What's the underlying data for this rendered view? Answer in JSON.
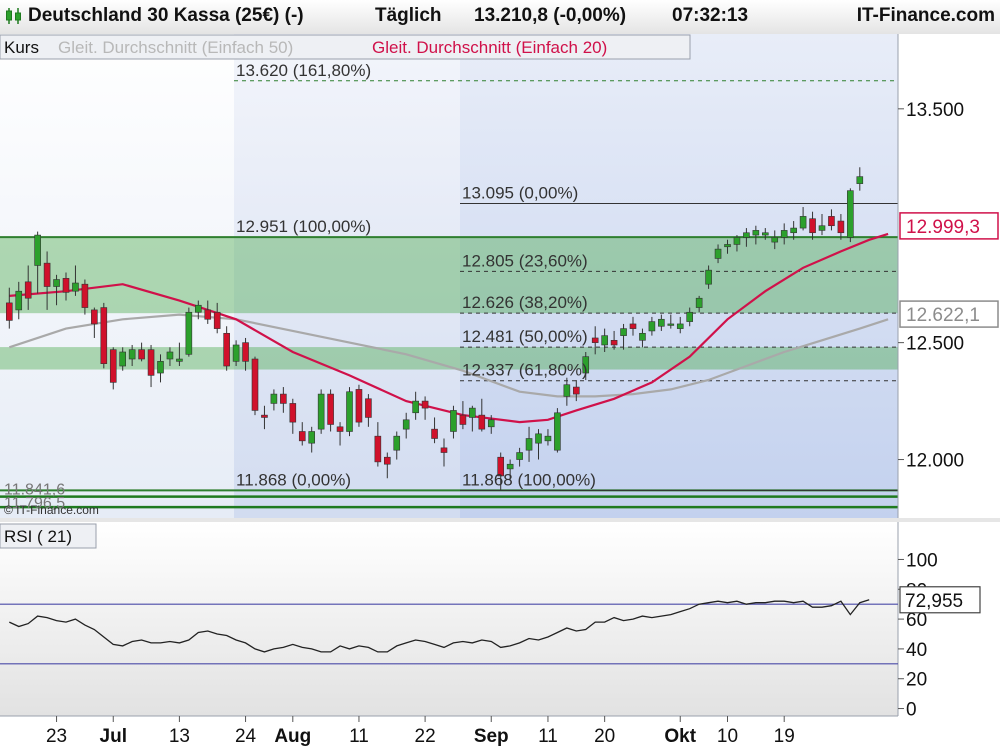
{
  "header": {
    "instrument": "Deutschland 30 Kassa (25€) (-)",
    "interval": "Täglich",
    "quote": "13.210,8 (-0,00%)",
    "time": "07:32:13",
    "brand": "IT-Finance.com"
  },
  "legend": {
    "kurs": "Kurs",
    "sma50": "Gleit. Durchschnitt (Einfach 50)",
    "sma20": "Gleit. Durchschnitt (Einfach 20)"
  },
  "watermark": "© IT-Finance.com",
  "colors": {
    "up": "#2ca02c",
    "down": "#d0112b",
    "sma20": "#d0114a",
    "sma50": "#a9a9a9",
    "rsi": "#222222",
    "zone": "#3aa43a",
    "level": "#2f7f2f",
    "rsi_band": "#4a4aa8"
  },
  "chart_data": [
    {
      "type": "candlestick",
      "title": "Deutschland 30 Kassa (25€) (-)",
      "ylim": [
        11750,
        13820
      ],
      "yticks": [
        12000,
        12500,
        13500
      ],
      "ytick_labels": [
        "12.000",
        "12.500",
        "13.500"
      ],
      "x_labels": [
        {
          "i": 5,
          "label": "23"
        },
        {
          "i": 11,
          "label": "Jul"
        },
        {
          "i": 18,
          "label": "13"
        },
        {
          "i": 25,
          "label": "24"
        },
        {
          "i": 30,
          "label": "Aug"
        },
        {
          "i": 37,
          "label": "11"
        },
        {
          "i": 44,
          "label": "22"
        },
        {
          "i": 51,
          "label": "Sep"
        },
        {
          "i": 57,
          "label": "11"
        },
        {
          "i": 63,
          "label": "20"
        },
        {
          "i": 71,
          "label": "Okt"
        },
        {
          "i": 76,
          "label": "10"
        },
        {
          "i": 82,
          "label": "19"
        }
      ],
      "candles": [
        {
          "o": 12670,
          "h": 12735,
          "l": 12560,
          "c": 12595
        },
        {
          "o": 12640,
          "h": 12760,
          "l": 12600,
          "c": 12720
        },
        {
          "o": 12760,
          "h": 12830,
          "l": 12640,
          "c": 12690
        },
        {
          "o": 12830,
          "h": 12975,
          "l": 12710,
          "c": 12960
        },
        {
          "o": 12840,
          "h": 12890,
          "l": 12640,
          "c": 12740
        },
        {
          "o": 12740,
          "h": 12790,
          "l": 12660,
          "c": 12770
        },
        {
          "o": 12775,
          "h": 12800,
          "l": 12680,
          "c": 12715
        },
        {
          "o": 12720,
          "h": 12830,
          "l": 12700,
          "c": 12755
        },
        {
          "o": 12750,
          "h": 12770,
          "l": 12620,
          "c": 12650
        },
        {
          "o": 12640,
          "h": 12650,
          "l": 12520,
          "c": 12580
        },
        {
          "o": 12650,
          "h": 12670,
          "l": 12390,
          "c": 12410
        },
        {
          "o": 12470,
          "h": 12480,
          "l": 12300,
          "c": 12330
        },
        {
          "o": 12400,
          "h": 12480,
          "l": 12380,
          "c": 12460
        },
        {
          "o": 12430,
          "h": 12490,
          "l": 12400,
          "c": 12470
        },
        {
          "o": 12470,
          "h": 12500,
          "l": 12420,
          "c": 12430
        },
        {
          "o": 12470,
          "h": 12490,
          "l": 12310,
          "c": 12360
        },
        {
          "o": 12370,
          "h": 12450,
          "l": 12330,
          "c": 12420
        },
        {
          "o": 12430,
          "h": 12480,
          "l": 12400,
          "c": 12460
        },
        {
          "o": 12420,
          "h": 12500,
          "l": 12400,
          "c": 12430
        },
        {
          "o": 12450,
          "h": 12650,
          "l": 12440,
          "c": 12630
        },
        {
          "o": 12630,
          "h": 12680,
          "l": 12600,
          "c": 12660
        },
        {
          "o": 12640,
          "h": 12680,
          "l": 12580,
          "c": 12600
        },
        {
          "o": 12630,
          "h": 12670,
          "l": 12540,
          "c": 12560
        },
        {
          "o": 12540,
          "h": 12570,
          "l": 12380,
          "c": 12400
        },
        {
          "o": 12420,
          "h": 12510,
          "l": 12400,
          "c": 12490
        },
        {
          "o": 12500,
          "h": 12520,
          "l": 12380,
          "c": 12420
        },
        {
          "o": 12430,
          "h": 12440,
          "l": 12190,
          "c": 12210
        },
        {
          "o": 12190,
          "h": 12230,
          "l": 12130,
          "c": 12180
        },
        {
          "o": 12240,
          "h": 12300,
          "l": 12210,
          "c": 12280
        },
        {
          "o": 12280,
          "h": 12310,
          "l": 12200,
          "c": 12240
        },
        {
          "o": 12240,
          "h": 12260,
          "l": 12110,
          "c": 12160
        },
        {
          "o": 12120,
          "h": 12160,
          "l": 12060,
          "c": 12080
        },
        {
          "o": 12070,
          "h": 12140,
          "l": 12030,
          "c": 12120
        },
        {
          "o": 12130,
          "h": 12300,
          "l": 12110,
          "c": 12280
        },
        {
          "o": 12280,
          "h": 12300,
          "l": 12120,
          "c": 12150
        },
        {
          "o": 12140,
          "h": 12160,
          "l": 12060,
          "c": 12120
        },
        {
          "o": 12120,
          "h": 12310,
          "l": 12100,
          "c": 12290
        },
        {
          "o": 12300,
          "h": 12320,
          "l": 12140,
          "c": 12160
        },
        {
          "o": 12260,
          "h": 12280,
          "l": 12140,
          "c": 12180
        },
        {
          "o": 12100,
          "h": 12160,
          "l": 11970,
          "c": 11990
        },
        {
          "o": 12010,
          "h": 12030,
          "l": 11920,
          "c": 11980
        },
        {
          "o": 12040,
          "h": 12120,
          "l": 12000,
          "c": 12100
        },
        {
          "o": 12130,
          "h": 12200,
          "l": 12090,
          "c": 12170
        },
        {
          "o": 12200,
          "h": 12290,
          "l": 12170,
          "c": 12250
        },
        {
          "o": 12250,
          "h": 12270,
          "l": 12170,
          "c": 12220
        },
        {
          "o": 12130,
          "h": 12180,
          "l": 12070,
          "c": 12090
        },
        {
          "o": 12050,
          "h": 12090,
          "l": 11970,
          "c": 12030
        },
        {
          "o": 12120,
          "h": 12230,
          "l": 12090,
          "c": 12210
        },
        {
          "o": 12190,
          "h": 12250,
          "l": 12130,
          "c": 12150
        },
        {
          "o": 12180,
          "h": 12230,
          "l": 12120,
          "c": 12220
        },
        {
          "o": 12190,
          "h": 12260,
          "l": 12120,
          "c": 12130
        },
        {
          "o": 12140,
          "h": 12190,
          "l": 12110,
          "c": 12170
        },
        {
          "o": 12010,
          "h": 12030,
          "l": 11870,
          "c": 11930
        },
        {
          "o": 11960,
          "h": 12000,
          "l": 11910,
          "c": 11980
        },
        {
          "o": 12000,
          "h": 12050,
          "l": 11970,
          "c": 12030
        },
        {
          "o": 12040,
          "h": 12140,
          "l": 11990,
          "c": 12090
        },
        {
          "o": 12070,
          "h": 12130,
          "l": 12000,
          "c": 12110
        },
        {
          "o": 12080,
          "h": 12130,
          "l": 12060,
          "c": 12100
        },
        {
          "o": 12040,
          "h": 12220,
          "l": 12030,
          "c": 12200
        },
        {
          "o": 12270,
          "h": 12350,
          "l": 12230,
          "c": 12320
        },
        {
          "o": 12310,
          "h": 12340,
          "l": 12250,
          "c": 12280
        },
        {
          "o": 12370,
          "h": 12460,
          "l": 12340,
          "c": 12440
        },
        {
          "o": 12520,
          "h": 12570,
          "l": 12450,
          "c": 12500
        },
        {
          "o": 12490,
          "h": 12560,
          "l": 12460,
          "c": 12530
        },
        {
          "o": 12510,
          "h": 12550,
          "l": 12470,
          "c": 12490
        },
        {
          "o": 12530,
          "h": 12580,
          "l": 12470,
          "c": 12560
        },
        {
          "o": 12580,
          "h": 12610,
          "l": 12530,
          "c": 12560
        },
        {
          "o": 12510,
          "h": 12560,
          "l": 12480,
          "c": 12540
        },
        {
          "o": 12550,
          "h": 12610,
          "l": 12530,
          "c": 12590
        },
        {
          "o": 12570,
          "h": 12620,
          "l": 12550,
          "c": 12600
        },
        {
          "o": 12580,
          "h": 12620,
          "l": 12560,
          "c": 12580
        },
        {
          "o": 12560,
          "h": 12610,
          "l": 12540,
          "c": 12580
        },
        {
          "o": 12590,
          "h": 12650,
          "l": 12570,
          "c": 12630
        },
        {
          "o": 12650,
          "h": 12700,
          "l": 12630,
          "c": 12690
        },
        {
          "o": 12750,
          "h": 12830,
          "l": 12730,
          "c": 12810
        },
        {
          "o": 12860,
          "h": 12920,
          "l": 12840,
          "c": 12900
        },
        {
          "o": 12910,
          "h": 12940,
          "l": 12880,
          "c": 12920
        },
        {
          "o": 12920,
          "h": 12960,
          "l": 12890,
          "c": 12950
        },
        {
          "o": 12950,
          "h": 12990,
          "l": 12910,
          "c": 12970
        },
        {
          "o": 12960,
          "h": 13000,
          "l": 12920,
          "c": 12980
        },
        {
          "o": 12960,
          "h": 12990,
          "l": 12940,
          "c": 12970
        },
        {
          "o": 12930,
          "h": 12980,
          "l": 12900,
          "c": 12950
        },
        {
          "o": 12950,
          "h": 13010,
          "l": 12920,
          "c": 12980
        },
        {
          "o": 12970,
          "h": 13020,
          "l": 12940,
          "c": 12990
        },
        {
          "o": 12990,
          "h": 13080,
          "l": 12980,
          "c": 13040
        },
        {
          "o": 13030,
          "h": 13060,
          "l": 12940,
          "c": 12970
        },
        {
          "o": 12980,
          "h": 13050,
          "l": 12960,
          "c": 13000
        },
        {
          "o": 13040,
          "h": 13070,
          "l": 12980,
          "c": 13000
        },
        {
          "o": 13020,
          "h": 13050,
          "l": 12940,
          "c": 12970
        },
        {
          "o": 12950,
          "h": 13160,
          "l": 12930,
          "c": 13150
        },
        {
          "o": 13180,
          "h": 13250,
          "l": 13150,
          "c": 13210
        }
      ],
      "sma20": [
        [
          0,
          12700
        ],
        [
          6,
          12720
        ],
        [
          12,
          12750
        ],
        [
          18,
          12680
        ],
        [
          24,
          12600
        ],
        [
          30,
          12460
        ],
        [
          36,
          12360
        ],
        [
          42,
          12250
        ],
        [
          48,
          12190
        ],
        [
          54,
          12160
        ],
        [
          57,
          12170
        ],
        [
          60,
          12210
        ],
        [
          64,
          12260
        ],
        [
          68,
          12330
        ],
        [
          72,
          12440
        ],
        [
          76,
          12600
        ],
        [
          80,
          12720
        ],
        [
          84,
          12820
        ],
        [
          88,
          12890
        ],
        [
          91,
          12940
        ],
        [
          93,
          12965
        ]
      ],
      "sma50": [
        [
          0,
          12480
        ],
        [
          6,
          12560
        ],
        [
          12,
          12600
        ],
        [
          18,
          12620
        ],
        [
          24,
          12600
        ],
        [
          30,
          12550
        ],
        [
          36,
          12500
        ],
        [
          42,
          12450
        ],
        [
          48,
          12380
        ],
        [
          54,
          12290
        ],
        [
          58,
          12270
        ],
        [
          62,
          12270
        ],
        [
          66,
          12280
        ],
        [
          70,
          12300
        ],
        [
          74,
          12340
        ],
        [
          78,
          12400
        ],
        [
          82,
          12460
        ],
        [
          86,
          12510
        ],
        [
          90,
          12560
        ],
        [
          93,
          12600
        ]
      ],
      "price_labels": [
        {
          "value": 12999.3,
          "label": "12.999,3",
          "color": "#d0114a"
        },
        {
          "value": 12622.1,
          "label": "12.622,1",
          "color": "#8c8c8c"
        }
      ],
      "fib_levels_left": [
        {
          "value": 13620,
          "label": "13.620 (161,80%)",
          "style": "dashed-green"
        },
        {
          "value": 12951,
          "label": "12.951 (100,00%)",
          "style": "solid-green"
        },
        {
          "value": 11868,
          "label": "11.868 (0,00%)",
          "style": "solid-green"
        }
      ],
      "fib_levels_right": [
        {
          "value": 13095,
          "label": "13.095 (0,00%)",
          "style": "solid"
        },
        {
          "value": 12805,
          "label": "12.805 (23,60%)",
          "style": "dashed"
        },
        {
          "value": 12626,
          "label": "12.626 (38,20%)",
          "style": "dashed"
        },
        {
          "value": 12481,
          "label": "12.481 (50,00%)",
          "style": "dashed"
        },
        {
          "value": 12337,
          "label": "12.337 (61,80%)",
          "style": "dashed"
        },
        {
          "value": 11868,
          "label": "11.868 (100,00%)",
          "style": "solid"
        }
      ],
      "support_levels": [
        {
          "value": 11841.6,
          "label": "11.841,6"
        },
        {
          "value": 11796.5,
          "label": "11.796,5"
        }
      ],
      "zones": [
        {
          "from": 12626,
          "to": 12951
        },
        {
          "from": 12385,
          "to": 12481
        }
      ]
    },
    {
      "type": "line",
      "title": "RSI ( 21)",
      "ylim": [
        -5,
        105
      ],
      "yticks": [
        0,
        20,
        40,
        60,
        80,
        100
      ],
      "ytick_labels": [
        "0",
        "20",
        "40",
        "60",
        "80",
        "100"
      ],
      "bands": [
        70,
        30
      ],
      "value_label": "72,955",
      "last_value": 72.955,
      "values": [
        58,
        55,
        57,
        62,
        61,
        59,
        58,
        60,
        56,
        53,
        48,
        43,
        42,
        45,
        46,
        44,
        44,
        45,
        44,
        46,
        51,
        52,
        50,
        49,
        46,
        44,
        40,
        38,
        40,
        41,
        43,
        41,
        40,
        38,
        38,
        42,
        40,
        42,
        41,
        38,
        38,
        42,
        44,
        46,
        45,
        43,
        41,
        44,
        45,
        44,
        46,
        45,
        41,
        42,
        44,
        47,
        46,
        48,
        51,
        54,
        52,
        53,
        58,
        58,
        61,
        59,
        60,
        62,
        61,
        62,
        63,
        65,
        67,
        70,
        71,
        72,
        71,
        72,
        70,
        71,
        71,
        72,
        72,
        71,
        72,
        68,
        68,
        69,
        72,
        63,
        71,
        73
      ]
    }
  ]
}
